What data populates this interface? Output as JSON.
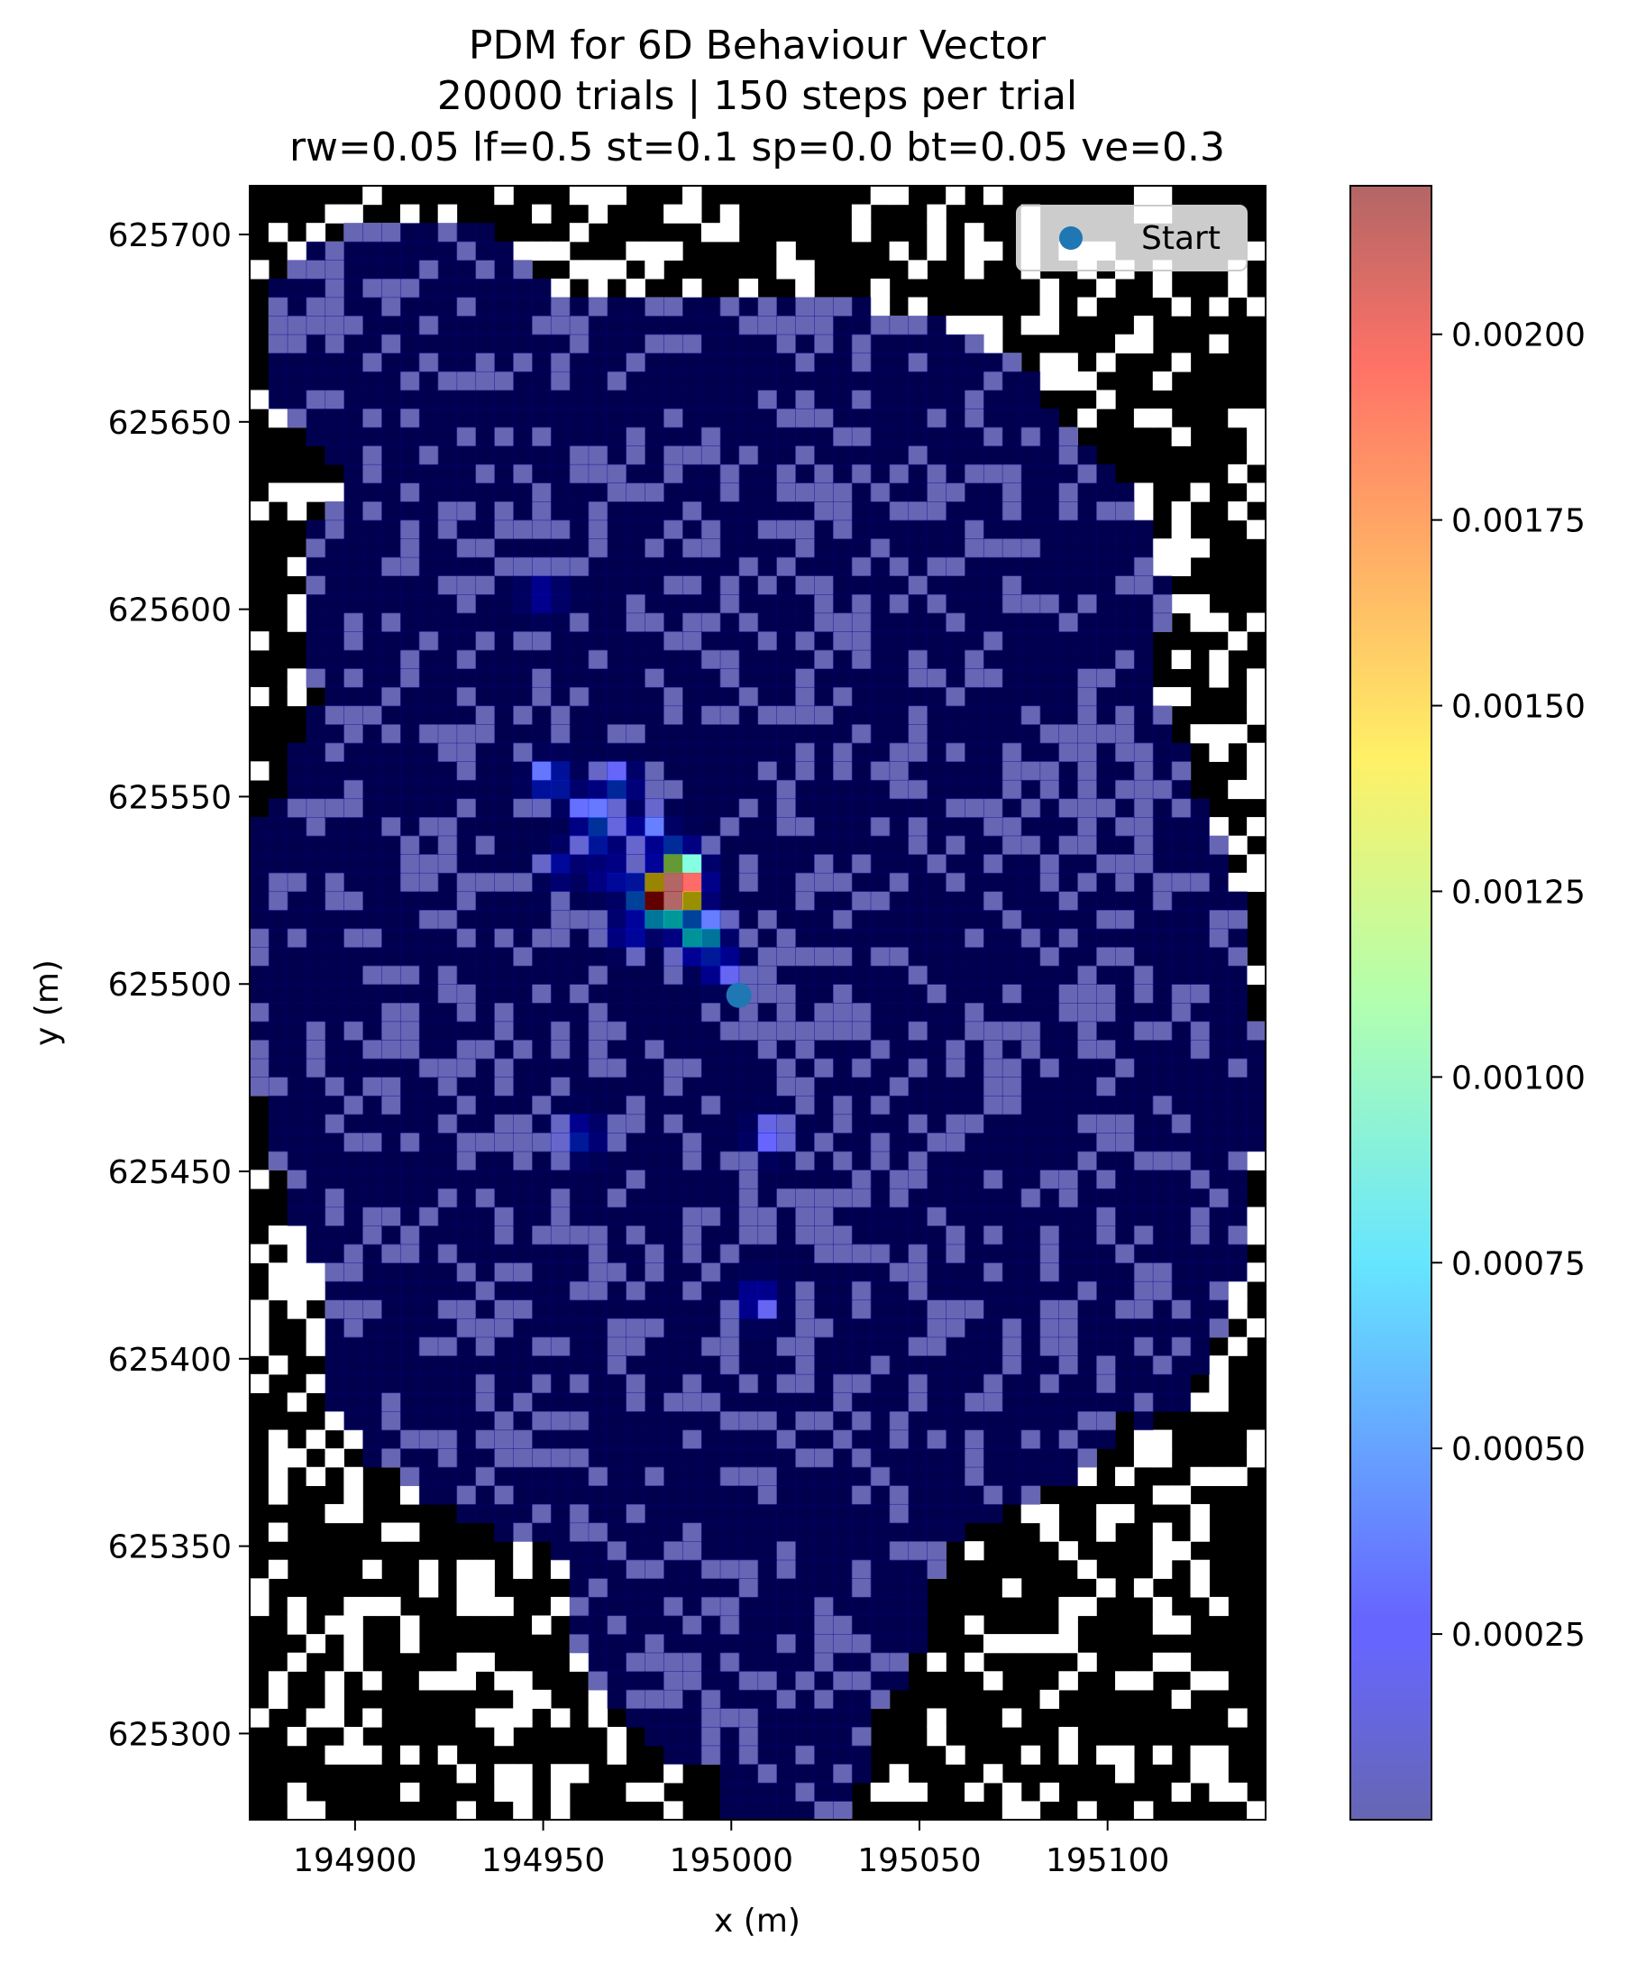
{
  "chart_data": {
    "type": "heatmap",
    "title_lines": [
      "PDM for 6D Behaviour Vector",
      "20000 trials | 150 steps per trial",
      "rw=0.05 lf=0.5 st=0.1 sp=0.0 bt=0.05 ve=0.3"
    ],
    "xlabel": "x (m)",
    "ylabel": "y (m)",
    "xlim": [
      194872,
      195142
    ],
    "ylim": [
      625277,
      625713
    ],
    "xticks": [
      194900,
      194950,
      195000,
      195050,
      195100
    ],
    "yticks": [
      625300,
      625350,
      625400,
      625450,
      625500,
      625550,
      625600,
      625650,
      625700
    ],
    "x_tick_labels": [
      "194900",
      "194950",
      "195000",
      "195050",
      "195100"
    ],
    "y_tick_labels": [
      "625300",
      "625350",
      "625400",
      "625450",
      "625500",
      "625550",
      "625600",
      "625650",
      "625700"
    ],
    "cell_size_m": 5,
    "background": "binary landscape raster (black / white)",
    "colormap": "jet",
    "alpha": 0.6,
    "colorbar": {
      "range": [
        0.0,
        0.0022
      ],
      "ticks": [
        0.00025,
        0.0005,
        0.00075,
        0.001,
        0.00125,
        0.0015,
        0.00175,
        0.002
      ],
      "tick_labels": [
        "0.00025",
        "0.00050",
        "0.00075",
        "0.00100",
        "0.00125",
        "0.00150",
        "0.00175",
        "0.00200"
      ]
    },
    "start_point": {
      "x": 195002,
      "y": 625497,
      "color": "#1f77b4"
    },
    "legend": {
      "placement": "top-right",
      "entries": [
        "Start"
      ]
    },
    "hotspots": [
      {
        "x": 194983,
        "y": 625523,
        "value": 0.0022
      },
      {
        "x": 194987,
        "y": 625522,
        "value": 0.0015
      },
      {
        "x": 194988,
        "y": 625527,
        "value": 0.0013
      },
      {
        "x": 194978,
        "y": 625522,
        "value": 0.0008
      },
      {
        "x": 194982,
        "y": 625518,
        "value": 0.0009
      },
      {
        "x": 194985,
        "y": 625532,
        "value": 0.0007
      },
      {
        "x": 194993,
        "y": 625512,
        "value": 0.0006
      },
      {
        "x": 194990,
        "y": 625510,
        "value": 0.0005
      },
      {
        "x": 194952,
        "y": 625553,
        "value": 0.0006
      },
      {
        "x": 194970,
        "y": 625552,
        "value": 0.00045
      },
      {
        "x": 194965,
        "y": 625538,
        "value": 0.00045
      },
      {
        "x": 194962,
        "y": 625545,
        "value": 0.0004
      },
      {
        "x": 194978,
        "y": 625540,
        "value": 0.0004
      },
      {
        "x": 194960,
        "y": 625457,
        "value": 0.0004
      },
      {
        "x": 195007,
        "y": 625413,
        "value": 0.0004
      },
      {
        "x": 194973,
        "y": 625512,
        "value": 0.00035
      },
      {
        "x": 194997,
        "y": 625503,
        "value": 0.0004
      },
      {
        "x": 194968,
        "y": 625527,
        "value": 0.00035
      },
      {
        "x": 194950,
        "y": 625603,
        "value": 0.0003
      },
      {
        "x": 195010,
        "y": 625457,
        "value": 0.0003
      },
      {
        "x": 194955,
        "y": 625530,
        "value": 0.0003
      }
    ]
  }
}
